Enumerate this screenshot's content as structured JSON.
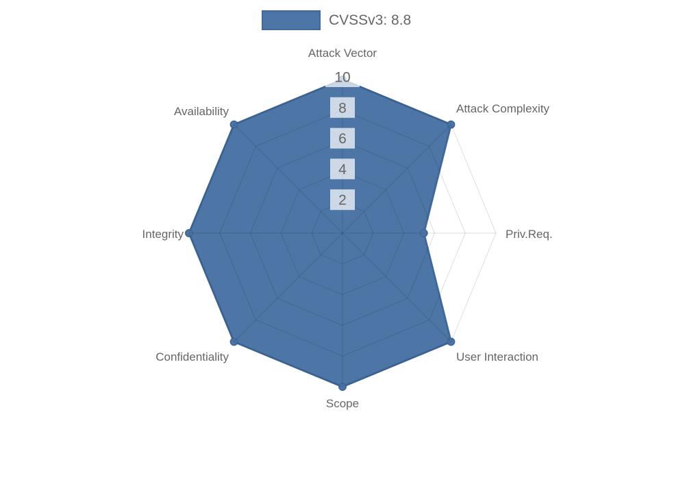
{
  "legend": {
    "label": "CVSSv3: 8.8"
  },
  "colors": {
    "fill": "#4d76a6",
    "border": "#40699b",
    "grid": "rgba(0,0,0,0.13)",
    "tick_text": "#666666",
    "label_text": "#666666",
    "tick_backdrop": "rgba(255,255,255,0.72)",
    "background": "#ffffff"
  },
  "chart_data": {
    "type": "radar",
    "title": "CVSSv3: 8.8",
    "categories": [
      "Attack Vector",
      "Attack Complexity",
      "Priv.Req.",
      "User Interaction",
      "Scope",
      "Confidentiality",
      "Integrity",
      "Availability"
    ],
    "series": [
      {
        "name": "CVSSv3: 8.8",
        "values": [
          10,
          10,
          5.3,
          10,
          10,
          10,
          10,
          10
        ]
      }
    ],
    "ticks": [
      2,
      4,
      6,
      8,
      10
    ],
    "rmin": 0,
    "rmax": 10,
    "grid": true,
    "grid_shape": "polygon",
    "legend_position": "top"
  }
}
